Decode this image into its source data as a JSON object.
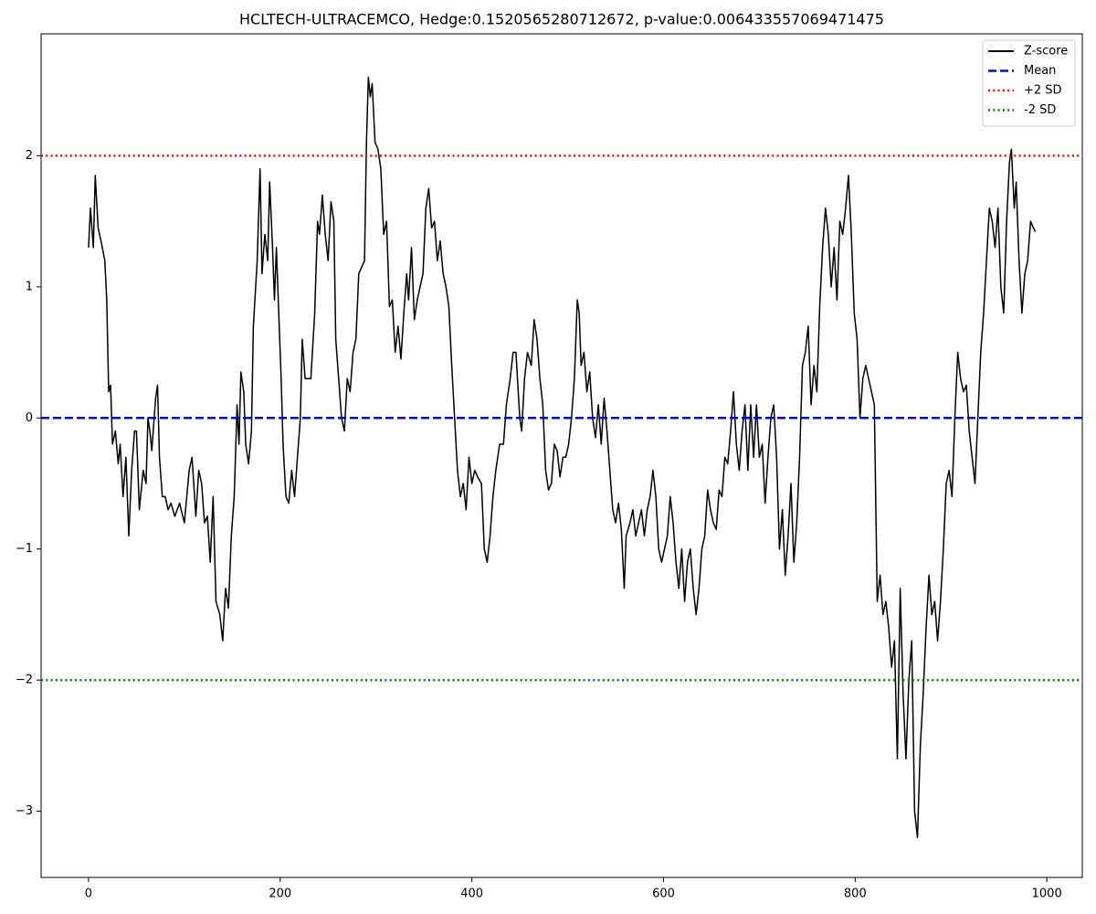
{
  "chart_data": {
    "type": "line",
    "title": "HCLTECH-ULTRACEMCO, Hedge:0.1520565280712672, p-value:0.006433557069471475",
    "x": [
      0,
      2,
      5,
      7,
      10,
      13,
      17,
      19,
      21,
      23,
      25,
      28,
      31,
      33,
      36,
      39,
      42,
      45,
      48,
      50,
      53,
      57,
      60,
      62,
      64,
      66,
      70,
      72,
      74,
      77,
      80,
      83,
      86,
      90,
      95,
      100,
      105,
      108,
      112,
      115,
      118,
      121,
      124,
      127,
      130,
      133,
      137,
      140,
      143,
      146,
      149,
      152,
      155,
      157,
      159,
      162,
      164,
      167,
      170,
      172,
      176,
      179,
      181,
      184,
      187,
      189,
      192,
      194,
      196,
      199,
      201,
      203,
      206,
      209,
      212,
      215,
      218,
      221,
      223,
      226,
      229,
      232,
      236,
      239,
      241,
      244,
      247,
      250,
      253,
      256,
      258,
      261,
      264,
      267,
      270,
      273,
      276,
      279,
      282,
      285,
      288,
      290,
      292,
      294,
      296,
      299,
      302,
      305,
      308,
      311,
      314,
      317,
      320,
      323,
      326,
      329,
      332,
      334,
      337,
      340,
      343,
      346,
      349,
      352,
      355,
      358,
      361,
      364,
      367,
      370,
      373,
      376,
      379,
      382,
      385,
      388,
      391,
      394,
      397,
      400,
      403,
      406,
      410,
      413,
      416,
      419,
      422,
      425,
      429,
      433,
      436,
      440,
      443,
      446,
      450,
      452,
      455,
      458,
      462,
      465,
      468,
      471,
      474,
      477,
      480,
      483,
      486,
      489,
      492,
      495,
      498,
      501,
      504,
      507,
      510,
      512,
      514,
      517,
      520,
      523,
      526,
      529,
      532,
      535,
      538,
      541,
      544,
      547,
      550,
      553,
      556,
      559,
      561,
      565,
      568,
      571,
      574,
      577,
      580,
      583,
      586,
      589,
      592,
      595,
      598,
      601,
      604,
      607,
      610,
      613,
      616,
      619,
      622,
      625,
      628,
      631,
      634,
      637,
      640,
      643,
      646,
      649,
      652,
      655,
      658,
      661,
      664,
      667,
      670,
      673,
      676,
      679,
      682,
      685,
      688,
      691,
      694,
      697,
      700,
      703,
      706,
      709,
      712,
      715,
      718,
      721,
      724,
      727,
      730,
      733,
      736,
      739,
      742,
      745,
      748,
      751,
      754,
      757,
      760,
      763,
      766,
      769,
      772,
      775,
      778,
      781,
      784,
      787,
      790,
      793,
      796,
      799,
      802,
      805,
      808,
      811,
      814,
      817,
      820,
      823,
      826,
      829,
      832,
      835,
      838,
      841,
      844,
      847,
      850,
      853,
      856,
      859,
      862,
      865,
      868,
      871,
      874,
      877,
      880,
      883,
      886,
      889,
      892,
      895,
      898,
      901,
      904,
      907,
      910,
      913,
      916,
      919,
      922,
      925,
      928,
      931,
      934,
      937,
      940,
      943,
      946,
      949,
      952,
      955,
      958,
      961,
      963,
      966,
      968,
      971,
      974,
      977,
      980,
      983,
      986,
      988
    ],
    "series": [
      {
        "name": "Z-score",
        "color": "#000000",
        "values": [
          1.3,
          1.6,
          1.3,
          1.85,
          1.45,
          1.35,
          1.2,
          0.9,
          0.2,
          0.25,
          -0.2,
          -0.1,
          -0.35,
          -0.2,
          -0.6,
          -0.3,
          -0.9,
          -0.4,
          -0.1,
          -0.1,
          -0.7,
          -0.4,
          -0.5,
          0.0,
          -0.1,
          -0.25,
          0.15,
          0.25,
          -0.3,
          -0.6,
          -0.6,
          -0.7,
          -0.65,
          -0.75,
          -0.65,
          -0.8,
          -0.4,
          -0.3,
          -0.75,
          -0.4,
          -0.5,
          -0.8,
          -0.75,
          -1.1,
          -0.6,
          -1.4,
          -1.5,
          -1.7,
          -1.3,
          -1.45,
          -0.9,
          -0.6,
          0.1,
          -0.2,
          0.35,
          0.2,
          -0.2,
          -0.35,
          -0.1,
          0.7,
          1.2,
          1.9,
          1.1,
          1.4,
          1.2,
          1.8,
          1.3,
          0.9,
          1.3,
          0.7,
          0.3,
          -0.2,
          -0.6,
          -0.65,
          -0.4,
          -0.6,
          -0.3,
          0.0,
          0.6,
          0.3,
          0.3,
          0.3,
          0.8,
          1.5,
          1.4,
          1.7,
          1.4,
          1.2,
          1.65,
          1.5,
          0.6,
          0.3,
          0.0,
          -0.1,
          0.3,
          0.2,
          0.5,
          0.6,
          1.1,
          1.15,
          1.2,
          2.1,
          2.6,
          2.45,
          2.55,
          2.1,
          2.05,
          1.9,
          1.4,
          1.5,
          0.85,
          0.9,
          0.5,
          0.7,
          0.45,
          0.8,
          1.1,
          0.9,
          1.3,
          0.75,
          0.9,
          1.0,
          1.1,
          1.6,
          1.75,
          1.45,
          1.5,
          1.2,
          1.35,
          1.1,
          1.0,
          0.85,
          0.4,
          0.0,
          -0.4,
          -0.6,
          -0.5,
          -0.7,
          -0.3,
          -0.5,
          -0.4,
          -0.45,
          -0.5,
          -1.0,
          -1.1,
          -0.9,
          -0.6,
          -0.4,
          -0.2,
          -0.2,
          0.1,
          0.3,
          0.5,
          0.5,
          0.0,
          -0.1,
          0.3,
          0.5,
          0.4,
          0.75,
          0.6,
          0.3,
          0.1,
          -0.4,
          -0.55,
          -0.5,
          -0.2,
          -0.25,
          -0.45,
          -0.3,
          -0.3,
          -0.2,
          0.0,
          0.3,
          0.9,
          0.8,
          0.4,
          0.5,
          0.2,
          0.35,
          0.0,
          -0.15,
          0.1,
          -0.2,
          0.15,
          -0.1,
          -0.4,
          -0.7,
          -0.8,
          -0.65,
          -0.85,
          -1.3,
          -0.9,
          -0.8,
          -0.7,
          -0.9,
          -0.8,
          -0.7,
          -0.9,
          -0.7,
          -0.6,
          -0.4,
          -0.6,
          -1.0,
          -1.1,
          -1.0,
          -0.9,
          -0.6,
          -0.8,
          -1.1,
          -1.3,
          -1.0,
          -1.4,
          -1.1,
          -1.0,
          -1.3,
          -1.5,
          -1.3,
          -1.0,
          -0.9,
          -0.55,
          -0.7,
          -0.8,
          -0.85,
          -0.55,
          -0.6,
          -0.3,
          -0.35,
          -0.1,
          0.2,
          -0.2,
          -0.4,
          -0.1,
          0.1,
          -0.4,
          0.1,
          -0.3,
          0.1,
          -0.3,
          -0.2,
          -0.65,
          -0.3,
          0.0,
          0.1,
          -0.3,
          -1.0,
          -0.7,
          -1.2,
          -0.9,
          -0.5,
          -1.1,
          -0.8,
          -0.3,
          0.4,
          0.5,
          0.7,
          0.1,
          0.4,
          0.2,
          0.85,
          1.3,
          1.6,
          1.4,
          1.0,
          1.3,
          0.9,
          1.5,
          1.4,
          1.6,
          1.85,
          1.4,
          0.8,
          0.6,
          0.0,
          0.3,
          0.4,
          0.3,
          0.2,
          0.1,
          -1.4,
          -1.2,
          -1.5,
          -1.4,
          -1.6,
          -1.9,
          -1.7,
          -2.6,
          -1.3,
          -2.1,
          -2.6,
          -2.0,
          -1.7,
          -3.0,
          -3.2,
          -2.5,
          -2.1,
          -1.6,
          -1.2,
          -1.5,
          -1.4,
          -1.7,
          -1.4,
          -1.0,
          -0.5,
          -0.4,
          -0.6,
          0.0,
          0.5,
          0.3,
          0.2,
          0.25,
          -0.1,
          -0.3,
          -0.5,
          0.0,
          0.5,
          0.8,
          1.2,
          1.6,
          1.5,
          1.3,
          1.6,
          1.0,
          0.8,
          1.5,
          1.95,
          2.05,
          1.6,
          1.8,
          1.2,
          0.8,
          1.1,
          1.2,
          1.5,
          1.45,
          1.42
        ]
      }
    ],
    "hlines": [
      {
        "name": "Mean",
        "color": "#0000ff",
        "style": "dashed",
        "value": 0
      },
      {
        "name": "+2 SD",
        "color": "#ff0000",
        "style": "dotted",
        "value": 2
      },
      {
        "name": "-2 SD",
        "color": "#008000",
        "style": "dotted",
        "value": -2
      }
    ],
    "xlim": [
      -49.5,
      1037
    ],
    "ylim": [
      -3.505,
      2.93
    ],
    "xticks": [
      0,
      200,
      400,
      600,
      800,
      1000
    ],
    "yticks": [
      {
        "value": -3,
        "label": "−3"
      },
      {
        "value": -2,
        "label": "−2"
      },
      {
        "value": -1,
        "label": "−1"
      },
      0,
      1,
      2
    ],
    "legend": "upper right",
    "grid": false
  }
}
